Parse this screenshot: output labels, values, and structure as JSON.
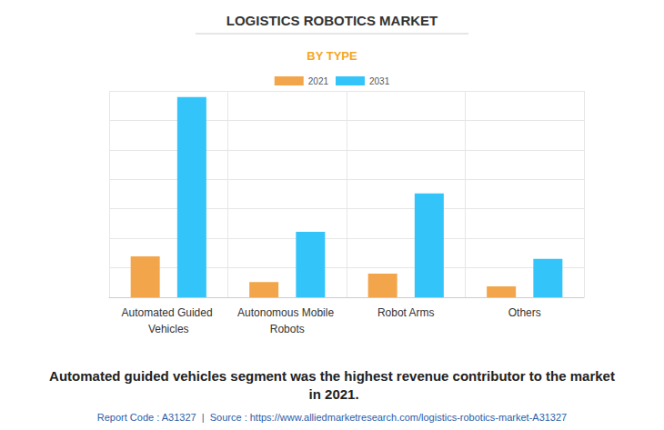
{
  "chart_data": {
    "type": "bar",
    "title": "LOGISTICS ROBOTICS MARKET",
    "subtitle": "BY TYPE",
    "categories": [
      "Automated Guided Vehicles",
      "Autonomous Mobile Robots",
      "Robot Arms",
      "Others"
    ],
    "series": [
      {
        "name": "2021",
        "color": "#f2a54a",
        "values": [
          1.39,
          0.52,
          0.8,
          0.37
        ]
      },
      {
        "name": "2031",
        "color": "#33c5f9",
        "values": [
          6.79,
          2.22,
          3.52,
          1.3
        ]
      }
    ],
    "ylim": [
      0,
      7
    ],
    "yticks": [
      0,
      1,
      2,
      3,
      4,
      5,
      6,
      7
    ],
    "grid": true,
    "legend": "top",
    "tick_labels": "x",
    "annotations": [
      "Automated guided vehicles segment was the highest revenue contributor to the market in 2021.",
      "Report Code : A31327  |  Source : https://www.alliedmarketresearch.com/logistics-robotics-market-A31327"
    ]
  }
}
